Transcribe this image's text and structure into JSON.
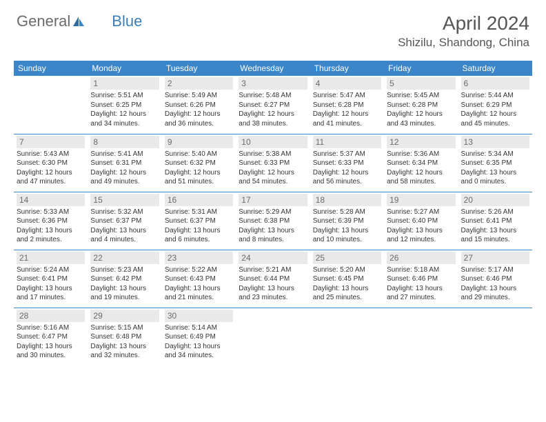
{
  "logo": {
    "text1": "General",
    "text2": "Blue"
  },
  "header": {
    "month_title": "April 2024",
    "location": "Shizilu, Shandong, China"
  },
  "colors": {
    "header_bg": "#3a86c8",
    "header_text": "#ffffff",
    "daynum_bg": "#e9e9e9",
    "daynum_text": "#6b6b6b",
    "row_divider": "#3a86c8",
    "body_text": "#333333",
    "logo_gray": "#6b6b6b",
    "logo_blue": "#3a7fb8"
  },
  "typography": {
    "month_title_pt": 28,
    "location_pt": 17,
    "dayheader_pt": 12,
    "daynum_pt": 12,
    "body_pt": 10
  },
  "calendar": {
    "type": "table",
    "day_headers": [
      "Sunday",
      "Monday",
      "Tuesday",
      "Wednesday",
      "Thursday",
      "Friday",
      "Saturday"
    ],
    "weeks": [
      [
        {
          "n": "",
          "l1": "",
          "l2": "",
          "l3": "",
          "l4": ""
        },
        {
          "n": "1",
          "l1": "Sunrise: 5:51 AM",
          "l2": "Sunset: 6:25 PM",
          "l3": "Daylight: 12 hours",
          "l4": "and 34 minutes."
        },
        {
          "n": "2",
          "l1": "Sunrise: 5:49 AM",
          "l2": "Sunset: 6:26 PM",
          "l3": "Daylight: 12 hours",
          "l4": "and 36 minutes."
        },
        {
          "n": "3",
          "l1": "Sunrise: 5:48 AM",
          "l2": "Sunset: 6:27 PM",
          "l3": "Daylight: 12 hours",
          "l4": "and 38 minutes."
        },
        {
          "n": "4",
          "l1": "Sunrise: 5:47 AM",
          "l2": "Sunset: 6:28 PM",
          "l3": "Daylight: 12 hours",
          "l4": "and 41 minutes."
        },
        {
          "n": "5",
          "l1": "Sunrise: 5:45 AM",
          "l2": "Sunset: 6:28 PM",
          "l3": "Daylight: 12 hours",
          "l4": "and 43 minutes."
        },
        {
          "n": "6",
          "l1": "Sunrise: 5:44 AM",
          "l2": "Sunset: 6:29 PM",
          "l3": "Daylight: 12 hours",
          "l4": "and 45 minutes."
        }
      ],
      [
        {
          "n": "7",
          "l1": "Sunrise: 5:43 AM",
          "l2": "Sunset: 6:30 PM",
          "l3": "Daylight: 12 hours",
          "l4": "and 47 minutes."
        },
        {
          "n": "8",
          "l1": "Sunrise: 5:41 AM",
          "l2": "Sunset: 6:31 PM",
          "l3": "Daylight: 12 hours",
          "l4": "and 49 minutes."
        },
        {
          "n": "9",
          "l1": "Sunrise: 5:40 AM",
          "l2": "Sunset: 6:32 PM",
          "l3": "Daylight: 12 hours",
          "l4": "and 51 minutes."
        },
        {
          "n": "10",
          "l1": "Sunrise: 5:38 AM",
          "l2": "Sunset: 6:33 PM",
          "l3": "Daylight: 12 hours",
          "l4": "and 54 minutes."
        },
        {
          "n": "11",
          "l1": "Sunrise: 5:37 AM",
          "l2": "Sunset: 6:33 PM",
          "l3": "Daylight: 12 hours",
          "l4": "and 56 minutes."
        },
        {
          "n": "12",
          "l1": "Sunrise: 5:36 AM",
          "l2": "Sunset: 6:34 PM",
          "l3": "Daylight: 12 hours",
          "l4": "and 58 minutes."
        },
        {
          "n": "13",
          "l1": "Sunrise: 5:34 AM",
          "l2": "Sunset: 6:35 PM",
          "l3": "Daylight: 13 hours",
          "l4": "and 0 minutes."
        }
      ],
      [
        {
          "n": "14",
          "l1": "Sunrise: 5:33 AM",
          "l2": "Sunset: 6:36 PM",
          "l3": "Daylight: 13 hours",
          "l4": "and 2 minutes."
        },
        {
          "n": "15",
          "l1": "Sunrise: 5:32 AM",
          "l2": "Sunset: 6:37 PM",
          "l3": "Daylight: 13 hours",
          "l4": "and 4 minutes."
        },
        {
          "n": "16",
          "l1": "Sunrise: 5:31 AM",
          "l2": "Sunset: 6:37 PM",
          "l3": "Daylight: 13 hours",
          "l4": "and 6 minutes."
        },
        {
          "n": "17",
          "l1": "Sunrise: 5:29 AM",
          "l2": "Sunset: 6:38 PM",
          "l3": "Daylight: 13 hours",
          "l4": "and 8 minutes."
        },
        {
          "n": "18",
          "l1": "Sunrise: 5:28 AM",
          "l2": "Sunset: 6:39 PM",
          "l3": "Daylight: 13 hours",
          "l4": "and 10 minutes."
        },
        {
          "n": "19",
          "l1": "Sunrise: 5:27 AM",
          "l2": "Sunset: 6:40 PM",
          "l3": "Daylight: 13 hours",
          "l4": "and 12 minutes."
        },
        {
          "n": "20",
          "l1": "Sunrise: 5:26 AM",
          "l2": "Sunset: 6:41 PM",
          "l3": "Daylight: 13 hours",
          "l4": "and 15 minutes."
        }
      ],
      [
        {
          "n": "21",
          "l1": "Sunrise: 5:24 AM",
          "l2": "Sunset: 6:41 PM",
          "l3": "Daylight: 13 hours",
          "l4": "and 17 minutes."
        },
        {
          "n": "22",
          "l1": "Sunrise: 5:23 AM",
          "l2": "Sunset: 6:42 PM",
          "l3": "Daylight: 13 hours",
          "l4": "and 19 minutes."
        },
        {
          "n": "23",
          "l1": "Sunrise: 5:22 AM",
          "l2": "Sunset: 6:43 PM",
          "l3": "Daylight: 13 hours",
          "l4": "and 21 minutes."
        },
        {
          "n": "24",
          "l1": "Sunrise: 5:21 AM",
          "l2": "Sunset: 6:44 PM",
          "l3": "Daylight: 13 hours",
          "l4": "and 23 minutes."
        },
        {
          "n": "25",
          "l1": "Sunrise: 5:20 AM",
          "l2": "Sunset: 6:45 PM",
          "l3": "Daylight: 13 hours",
          "l4": "and 25 minutes."
        },
        {
          "n": "26",
          "l1": "Sunrise: 5:18 AM",
          "l2": "Sunset: 6:46 PM",
          "l3": "Daylight: 13 hours",
          "l4": "and 27 minutes."
        },
        {
          "n": "27",
          "l1": "Sunrise: 5:17 AM",
          "l2": "Sunset: 6:46 PM",
          "l3": "Daylight: 13 hours",
          "l4": "and 29 minutes."
        }
      ],
      [
        {
          "n": "28",
          "l1": "Sunrise: 5:16 AM",
          "l2": "Sunset: 6:47 PM",
          "l3": "Daylight: 13 hours",
          "l4": "and 30 minutes."
        },
        {
          "n": "29",
          "l1": "Sunrise: 5:15 AM",
          "l2": "Sunset: 6:48 PM",
          "l3": "Daylight: 13 hours",
          "l4": "and 32 minutes."
        },
        {
          "n": "30",
          "l1": "Sunrise: 5:14 AM",
          "l2": "Sunset: 6:49 PM",
          "l3": "Daylight: 13 hours",
          "l4": "and 34 minutes."
        },
        {
          "n": "",
          "l1": "",
          "l2": "",
          "l3": "",
          "l4": ""
        },
        {
          "n": "",
          "l1": "",
          "l2": "",
          "l3": "",
          "l4": ""
        },
        {
          "n": "",
          "l1": "",
          "l2": "",
          "l3": "",
          "l4": ""
        },
        {
          "n": "",
          "l1": "",
          "l2": "",
          "l3": "",
          "l4": ""
        }
      ]
    ]
  }
}
